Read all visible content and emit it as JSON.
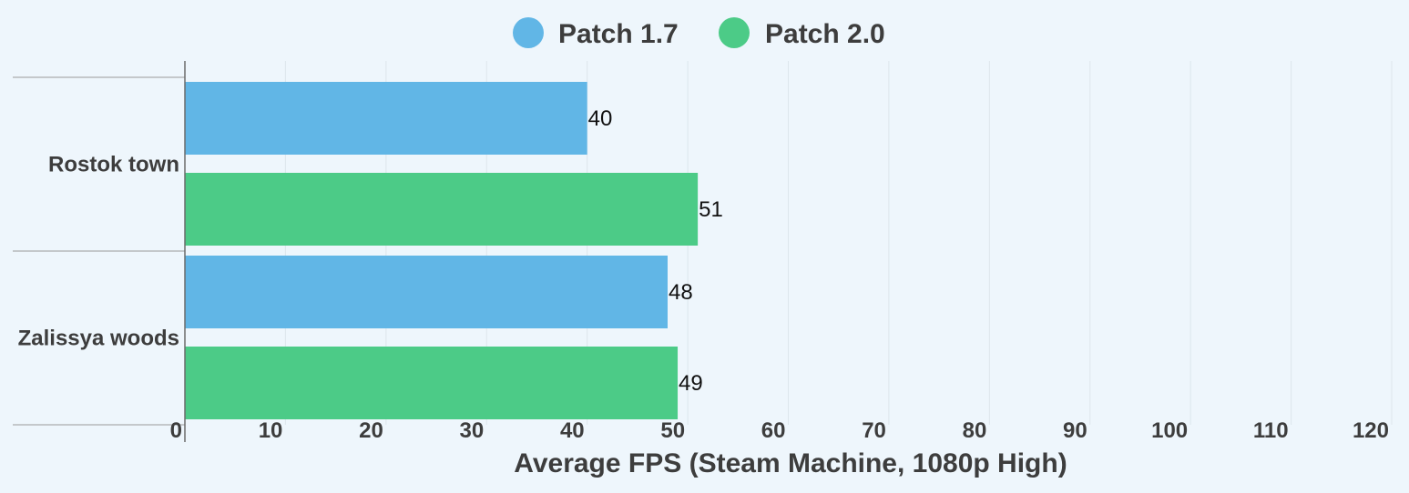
{
  "chart_data": {
    "type": "bar",
    "orientation": "horizontal",
    "categories": [
      "Rostok town",
      "Zalissya woods"
    ],
    "series": [
      {
        "name": "Patch 1.7",
        "color": "#61b6e6",
        "values": [
          40,
          48
        ]
      },
      {
        "name": "Patch 2.0",
        "color": "#4ccb87",
        "values": [
          51,
          49
        ]
      }
    ],
    "data_labels": {
      "Patch 1.7": [
        "40",
        "48"
      ],
      "Patch 2.0": [
        "51",
        "49"
      ]
    },
    "xlabel": "Average FPS (Steam Machine, 1080p High)",
    "ylabel": "",
    "xlim": [
      0,
      120
    ],
    "x_ticks": [
      "0",
      "10",
      "20",
      "30",
      "40",
      "50",
      "60",
      "70",
      "80",
      "90",
      "100",
      "110",
      "120"
    ],
    "grid": true,
    "legend_position": "top-center",
    "background_color": "#eef6fc"
  }
}
